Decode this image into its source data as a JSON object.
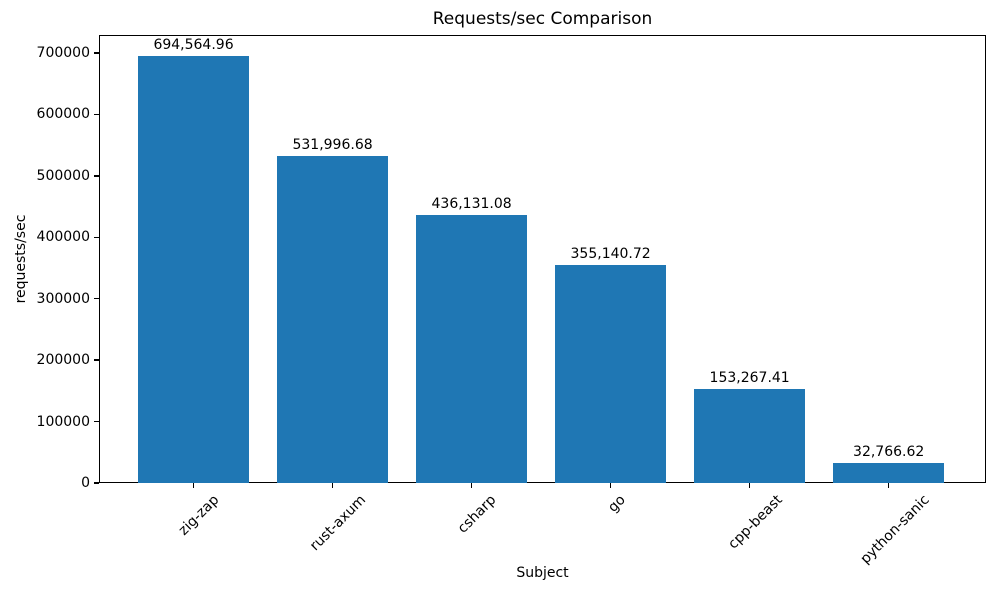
{
  "chart_data": {
    "type": "bar",
    "title": "Requests/sec Comparison",
    "xlabel": "Subject",
    "ylabel": "requests/sec",
    "categories": [
      "zig-zap",
      "rust-axum",
      "csharp",
      "go",
      "cpp-beast",
      "python-sanic"
    ],
    "values": [
      694564.96,
      531996.68,
      436131.08,
      355140.72,
      153267.41,
      32766.62
    ],
    "value_labels": [
      "694,564.96",
      "531,996.68",
      "436,131.08",
      "355,140.72",
      "153,267.41",
      "32,766.62"
    ],
    "yticks": [
      0,
      100000,
      200000,
      300000,
      400000,
      500000,
      600000,
      700000
    ],
    "ytick_labels": [
      "0",
      "100000",
      "200000",
      "300000",
      "400000",
      "500000",
      "600000",
      "700000"
    ],
    "ylim": [
      0,
      729293
    ],
    "xlim": [
      -0.68,
      5.7
    ],
    "bar_width": 0.8,
    "bar_color": "#1f77b4",
    "text_color": "#000000",
    "spine_color": "#000000",
    "grid": false,
    "legend": null,
    "x_tick_rotation_deg": 45
  }
}
